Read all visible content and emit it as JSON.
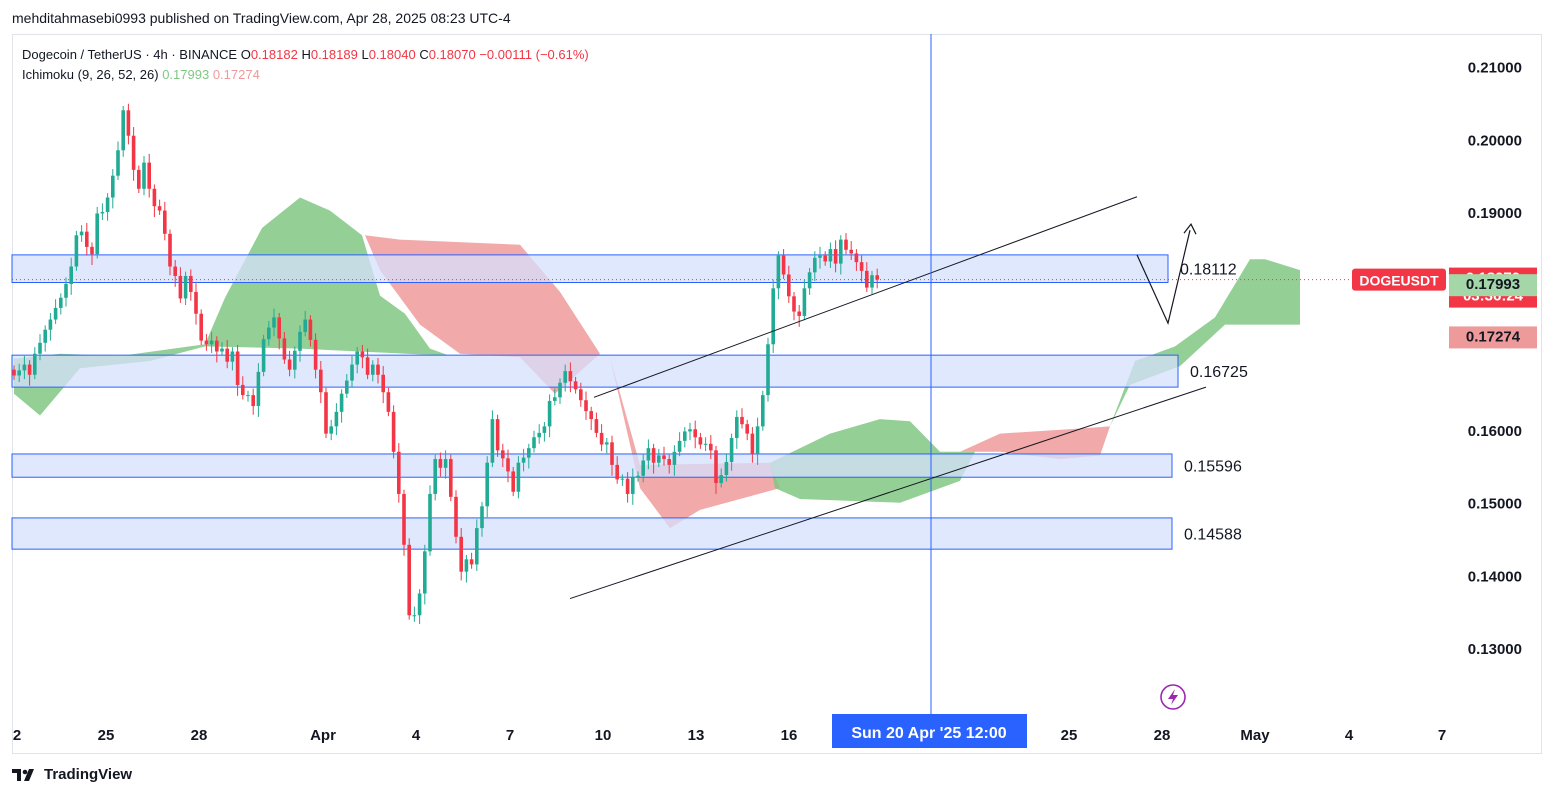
{
  "header": {
    "publisher_line": "mehditahmasebi0993 published on TradingView.com, Apr 28, 2025 08:23 UTC-4"
  },
  "legend": {
    "symbol_line": "Dogecoin / TetherUS · 4h · BINANCE",
    "ohlc": {
      "O": "0.18182",
      "H": "0.18189",
      "L": "0.18040",
      "C": "0.18070",
      "change": "−0.00111 (−0.61%)"
    },
    "indicator_name": "Ichimoku (9, 26, 52, 26)",
    "indicator_values": [
      "0.17993",
      "0.17274"
    ]
  },
  "footer": {
    "brand": "TradingView"
  },
  "colors": {
    "up": "#22ab94",
    "down": "#f23645",
    "cloud_bull": "#81c784",
    "cloud_bear": "#ef9a9a",
    "zone_fill": "#d6e0fc",
    "zone_border": "#2962ff",
    "crosshair": "#2962ff"
  },
  "chart_data": {
    "type": "candlestick",
    "symbol": "DOGEUSDT",
    "timeframe": "4h",
    "y_axis": {
      "ticks": [
        "0.21000",
        "0.20000",
        "0.19000",
        "0.16000",
        "0.15000",
        "0.14000",
        "0.13000"
      ],
      "ylim": [
        0.1205,
        0.2145
      ]
    },
    "x_axis": {
      "ticks": [
        "2",
        "25",
        "28",
        "Apr",
        "4",
        "7",
        "10",
        "13",
        "16",
        "25",
        "28",
        "May",
        "4",
        "7"
      ],
      "crosshair_label": "Sun 20 Apr '25   12:00"
    },
    "price_labels": {
      "last": {
        "name": "DOGEUSDT",
        "price": "0.18070",
        "countdown": "03:36:24"
      },
      "span_a": "0.17993",
      "span_b": "0.17274"
    },
    "zones": [
      {
        "label": "0.18112",
        "top": 0.1841,
        "bottom": 0.1803
      },
      {
        "label": "0.16725",
        "top": 0.1703,
        "bottom": 0.1659
      },
      {
        "label": "0.15596",
        "top": 0.1567,
        "bottom": 0.1535
      },
      {
        "label": "0.14588",
        "top": 0.1479,
        "bottom": 0.1436
      }
    ],
    "channel": {
      "upper": [
        [
          "Apr 9",
          0.1645
        ],
        [
          "Apr 26",
          0.1921
        ]
      ],
      "lower": [
        [
          "Apr 8",
          0.1368
        ],
        [
          "Apr 29",
          0.1659
        ]
      ]
    },
    "projection": [
      [
        "Apr 27",
        0.1841
      ],
      [
        "Apr 28",
        0.1747
      ],
      [
        "Apr 29",
        0.1875
      ]
    ],
    "closes": [
      0.1675,
      0.1682,
      0.169,
      0.1676,
      0.1705,
      0.172,
      0.1738,
      0.1752,
      0.1768,
      0.1782,
      0.1801,
      0.1825,
      0.1868,
      0.1873,
      0.1852,
      0.1842,
      0.1898,
      0.19,
      0.192,
      0.195,
      0.1985,
      0.204,
      0.2005,
      0.1958,
      0.1932,
      0.1968,
      0.1932,
      0.1908,
      0.1902,
      0.187,
      0.1825,
      0.1812,
      0.1781,
      0.1812,
      0.179,
      0.176,
      0.1723,
      0.1718,
      0.1723,
      0.1708,
      0.1712,
      0.1694,
      0.1708,
      0.1662,
      0.1648,
      0.1648,
      0.1633,
      0.168,
      0.1725,
      0.1741,
      0.1755,
      0.1726,
      0.1697,
      0.1683,
      0.1709,
      0.1735,
      0.1752,
      0.1724,
      0.1683,
      0.1652,
      0.1595,
      0.1605,
      0.1625,
      0.165,
      0.1668,
      0.169,
      0.1708,
      0.17,
      0.1676,
      0.169,
      0.1676,
      0.1652,
      0.1625,
      0.157,
      0.1512,
      0.1442,
      0.1345,
      0.1345,
      0.1375,
      0.1433,
      0.1512,
      0.156,
      0.1548,
      0.156,
      0.1508,
      0.1453,
      0.1405,
      0.1422,
      0.1415,
      0.1465,
      0.1495,
      0.1555,
      0.1615,
      0.1572,
      0.1561,
      0.1543,
      0.1515,
      0.1555,
      0.1562,
      0.1575,
      0.159,
      0.1596,
      0.1605,
      0.164,
      0.1645,
      0.1665,
      0.1681,
      0.1667,
      0.1656,
      0.1641,
      0.1626,
      0.1615,
      0.1596,
      0.158,
      0.1583,
      0.1552,
      0.1532,
      0.1533,
      0.1512,
      0.1535,
      0.1537,
      0.1558,
      0.1575,
      0.1555,
      0.1565,
      0.156,
      0.1552,
      0.157,
      0.1585,
      0.1598,
      0.1601,
      0.159,
      0.158,
      0.1581,
      0.1572,
      0.1527,
      0.1538,
      0.1556,
      0.1589,
      0.1618,
      0.1608,
      0.1595,
      0.1567,
      0.1605,
      0.1648,
      0.1718,
      0.1795,
      0.184,
      0.1814,
      0.1784,
      0.1763,
      0.1757,
      0.1795,
      0.1817,
      0.1837,
      0.184,
      0.1832,
      0.1849,
      0.1829,
      0.1862,
      0.1848,
      0.1843,
      0.1831,
      0.1819,
      0.1796,
      0.1813,
      0.1807
    ]
  }
}
